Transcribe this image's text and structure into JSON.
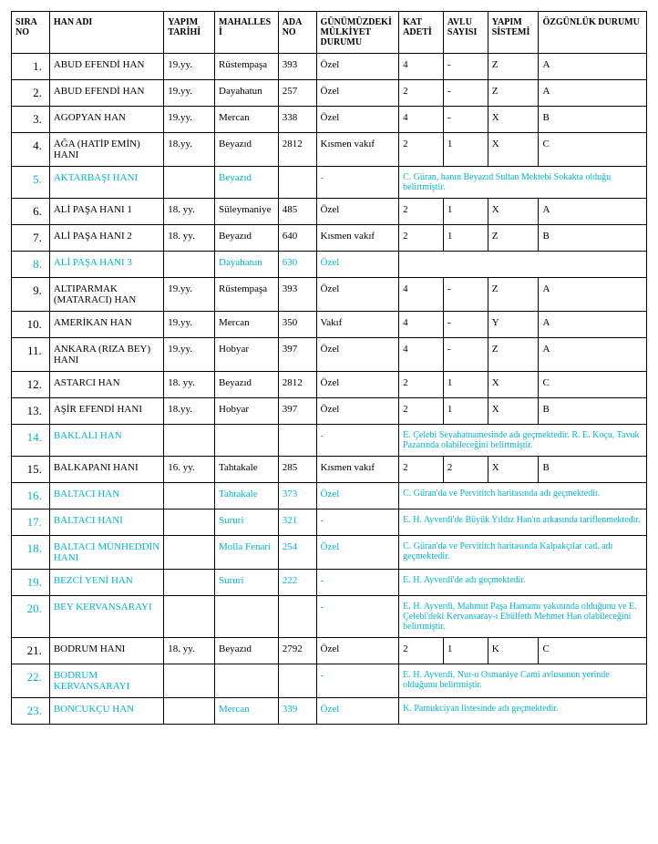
{
  "table": {
    "headers": [
      "SIRA  NO",
      "HAN ADI",
      "YAPIM TARİHİ",
      "MAHALLESİ",
      "ADA NO",
      "GÜNÜMÜZDEKİ MÜLKİYET DURUMU",
      "KAT ADETİ",
      "AVLU SAYISI",
      "YAPIM SİSTEMİ",
      "ÖZGÜNLÜK DURUMU"
    ],
    "colors": {
      "normal": "#000000",
      "cyan": "#00b5d1"
    },
    "rows": [
      {
        "type": "normal",
        "no": "1.",
        "name": "ABUD EFENDİ HAN",
        "date": "19.yy.",
        "mah": "Rüstempaşa",
        "ada": "393",
        "mulk": "Özel",
        "kat": "4",
        "avlu": "-",
        "yap": "Z",
        "ozg": "A"
      },
      {
        "type": "normal",
        "no": "2.",
        "name": "ABUD EFENDİ HAN",
        "date": "19.yy.",
        "mah": "Dayahatun",
        "ada": "257",
        "mulk": "Özel",
        "kat": "2",
        "avlu": "-",
        "yap": "Z",
        "ozg": "A"
      },
      {
        "type": "normal",
        "no": "3.",
        "name": "AGOPYAN HAN",
        "date": "19.yy.",
        "mah": "Mercan",
        "ada": "338",
        "mulk": "Özel",
        "kat": "4",
        "avlu": "-",
        "yap": "X",
        "ozg": "B"
      },
      {
        "type": "normal",
        "no": "4.",
        "name": "AĞA (HATİP EMİN) HANI",
        "date": "18.yy.",
        "mah": "Beyazıd",
        "ada": "2812",
        "mulk": "Kısmen vakıf",
        "kat": "2",
        "avlu": "1",
        "yap": "X",
        "ozg": "C"
      },
      {
        "type": "note",
        "no": "5.",
        "name": "AKTARBAŞI HANI",
        "date": "",
        "mah": "Beyazıd",
        "ada": "",
        "mulk": "-",
        "note": "C. Güran, hanın Beyazıd Sultan Mektebi Sokakta olduğu belirtmiştir."
      },
      {
        "type": "normal",
        "no": "6.",
        "name": "ALİ PAŞA HANI 1",
        "date": "18. yy.",
        "mah": "Süleymaniye",
        "ada": "485",
        "mulk": "Özel",
        "kat": "2",
        "avlu": "1",
        "yap": "X",
        "ozg": "A"
      },
      {
        "type": "normal",
        "no": "7.",
        "name": "ALİ PAŞA HANI 2",
        "date": "18. yy.",
        "mah": "Beyazıd",
        "ada": "640",
        "mulk": "Kısmen vakıf",
        "kat": "2",
        "avlu": "1",
        "yap": "Z",
        "ozg": "B"
      },
      {
        "type": "blanknote",
        "no": "8.",
        "name": "ALİ PAŞA HANI 3",
        "date": "",
        "mah": "Dayahatun",
        "ada": "630",
        "mulk": "Özel",
        "note": ""
      },
      {
        "type": "normal",
        "no": "9.",
        "name": "ALTIPARMAK (MATARACI) HAN",
        "date": "19.yy.",
        "mah": "Rüstempaşa",
        "ada": "393",
        "mulk": "Özel",
        "kat": "4",
        "avlu": "-",
        "yap": "Z",
        "ozg": "A"
      },
      {
        "type": "normal",
        "no": "10.",
        "name": "AMERİKAN HAN",
        "date": "19.yy.",
        "mah": "Mercan",
        "ada": "350",
        "mulk": "Vakıf",
        "kat": "4",
        "avlu": "-",
        "yap": "Y",
        "ozg": "A"
      },
      {
        "type": "normal",
        "no": "11.",
        "name": "ANKARA (RIZA BEY) HANI",
        "date": "19.yy.",
        "mah": "Hobyar",
        "ada": "397",
        "mulk": "Özel",
        "kat": "4",
        "avlu": "-",
        "yap": "Z",
        "ozg": "A"
      },
      {
        "type": "normal",
        "no": "12.",
        "name": "ASTARCI HAN",
        "date": "18. yy.",
        "mah": "Beyazıd",
        "ada": "2812",
        "mulk": "Özel",
        "kat": "2",
        "avlu": "1",
        "yap": "X",
        "ozg": "C"
      },
      {
        "type": "normal",
        "no": "13.",
        "name": "AŞİR EFENDİ HANI",
        "date": "18.yy.",
        "mah": "Hobyar",
        "ada": "397",
        "mulk": "Özel",
        "kat": "2",
        "avlu": "1",
        "yap": "X",
        "ozg": "B"
      },
      {
        "type": "note",
        "no": "14.",
        "name": "BAKLALI HAN",
        "date": "",
        "mah": "",
        "ada": "",
        "mulk": "-",
        "note": "E. Çelebi Seyahatnamesinde adı geçmektedir. R. E. Koçu, Tavuk Pazarında olabileceğini belirtmiştir."
      },
      {
        "type": "normal",
        "no": "15.",
        "name": "BALKAPANI HANI",
        "date": "16. yy.",
        "mah": "Tahtakale",
        "ada": "285",
        "mulk": "Kısmen vakıf",
        "kat": "2",
        "avlu": "2",
        "yap": "X",
        "ozg": "B"
      },
      {
        "type": "note",
        "no": "16.",
        "name": "BALTACI HAN",
        "date": "",
        "mah": "Tahtakale",
        "ada": "373",
        "mulk": "Özel",
        "note": "C. Güran'da ve Pervititch haritasında  adı geçmektedir."
      },
      {
        "type": "note",
        "no": "17.",
        "name": "BALTACI HANI",
        "date": "",
        "mah": "Sururi",
        "ada": "321",
        "mulk": "-",
        "note": "E. H. Ayverdi'de Büyük Yıldız Han'ın arkasında tariflenmektedir."
      },
      {
        "type": "note",
        "no": "18.",
        "name": "BALTACI MÜNHEDDİN HANI",
        "date": "",
        "mah": "Molla Fenari",
        "ada": "254",
        "mulk": "Özel",
        "note": "C. Güran'da ve Pervititch haritasında Kalpakçılar cad. adı geçmektedir."
      },
      {
        "type": "note",
        "no": "19.",
        "name": "BEZCİ YENİ HAN",
        "date": "",
        "mah": "Sururi",
        "ada": "222",
        "mulk": "-",
        "note": "E. H. Ayverdi'de adı geçmektedir."
      },
      {
        "type": "note",
        "no": "20.",
        "name": "BEY KERVANSARAYI",
        "date": "",
        "mah": "",
        "ada": "",
        "mulk": "-",
        "note": "E. H. Ayverdi, Mahmut Paşa Hamamı yakınında olduğunu ve E. Çelebi'deki Kervansaray-ı Ebülfeth Mehmet Han olabileceğini belirtmiştir."
      },
      {
        "type": "normal",
        "no": "21.",
        "name": "BODRUM HANI",
        "date": "18. yy.",
        "mah": "Beyazıd",
        "ada": "2792",
        "mulk": "Özel",
        "kat": "2",
        "avlu": "1",
        "yap": "K",
        "ozg": "C"
      },
      {
        "type": "note",
        "no": "22.",
        "name": "BODRUM KERVANSARAYI",
        "date": "",
        "mah": "",
        "ada": "",
        "mulk": "-",
        "note": "E. H. Ayverdi, Nur-u Osmaniye Cami avlusunun yerinde olduğunu belirtmiştir."
      },
      {
        "type": "note",
        "no": "23.",
        "name": "BONCUKÇU HAN",
        "date": "",
        "mah": "Mercan",
        "ada": "339",
        "mulk": "Özel",
        "note": "K. Pamukciyan listesinde adı geçmektedir."
      }
    ]
  }
}
